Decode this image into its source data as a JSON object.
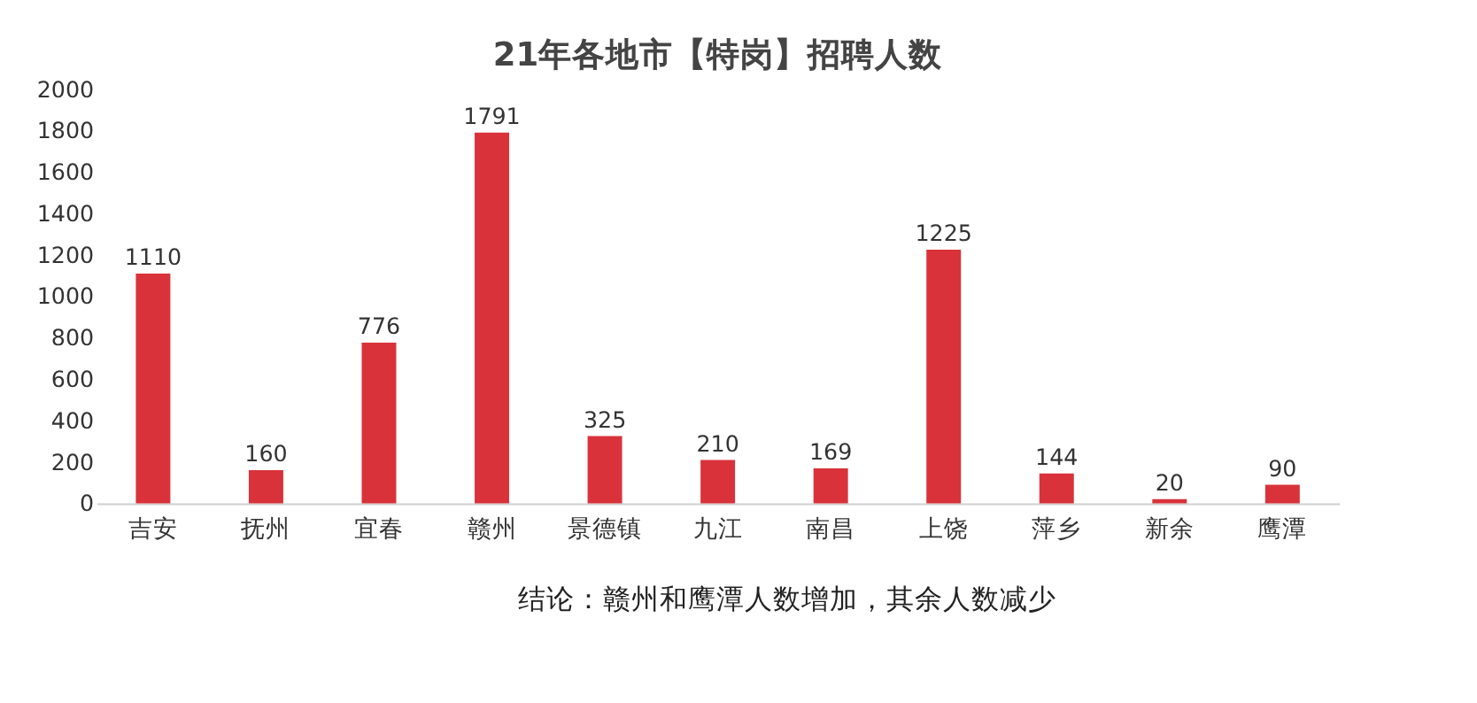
{
  "chart_data": {
    "type": "bar",
    "title": "21年各地市【特岗】招聘人数",
    "categories": [
      "吉安",
      "抚州",
      "宜春",
      "赣州",
      "景德镇",
      "九江",
      "南昌",
      "上饶",
      "萍乡",
      "新余",
      "鹰潭"
    ],
    "values": [
      1110,
      160,
      776,
      1791,
      325,
      210,
      169,
      1225,
      144,
      20,
      90
    ],
    "color": "#d9323a",
    "ylim": [
      0,
      2000
    ],
    "yticks": [
      0,
      200,
      400,
      600,
      800,
      1000,
      1200,
      1400,
      1600,
      1800,
      2000
    ],
    "grid": false,
    "data_labels": true,
    "annotations": [
      "结论：赣州和鹰潭人数增加，其余人数减少"
    ]
  }
}
